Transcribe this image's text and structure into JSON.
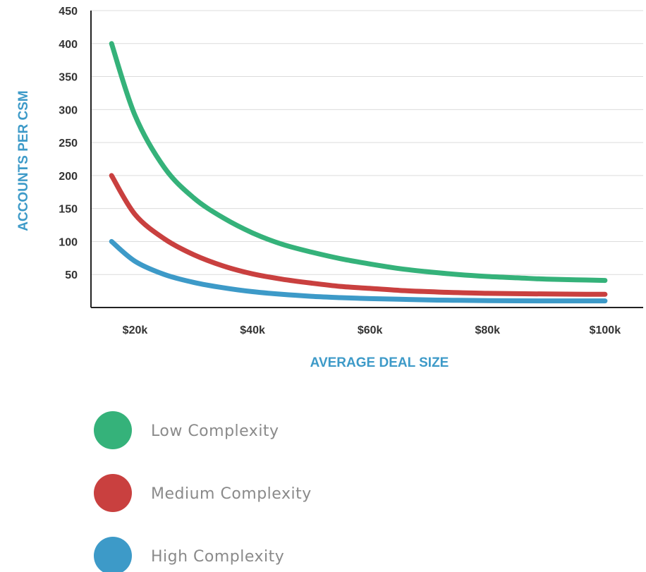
{
  "chart_data": {
    "type": "line",
    "xlabel": "AVERAGE DEAL SIZE",
    "ylabel": "ACCOUNTS PER CSM",
    "x_tick_labels": [
      "$20k",
      "$40k",
      "$60k",
      "$80k",
      "$100k"
    ],
    "x_ticks": [
      20,
      40,
      60,
      80,
      100
    ],
    "y_tick_labels": [
      "450",
      "400",
      "350",
      "300",
      "250",
      "200",
      "150",
      "100",
      "50"
    ],
    "y_ticks": [
      450,
      400,
      350,
      300,
      250,
      200,
      150,
      100,
      50
    ],
    "xlim": [
      12.5,
      106.5
    ],
    "ylim": [
      0,
      450
    ],
    "grid": true,
    "legend_position": "below",
    "x": [
      16,
      20,
      25,
      30,
      35,
      40,
      45,
      50,
      55,
      60,
      65,
      70,
      75,
      80,
      85,
      90,
      95,
      100
    ],
    "series": [
      {
        "name": "Low Complexity",
        "color": "#35b27a",
        "values": [
          400,
          291,
          212,
          166,
          136,
          113,
          96,
          84,
          74,
          66,
          59,
          54,
          50,
          47,
          45,
          43,
          42,
          41
        ]
      },
      {
        "name": "Medium Complexity",
        "color": "#c9403f",
        "values": [
          200,
          141,
          104,
          80,
          63,
          51,
          43,
          37,
          32,
          29,
          26,
          24,
          22.5,
          21.5,
          21,
          20.5,
          20.2,
          20
        ]
      },
      {
        "name": "High Complexity",
        "color": "#3d9ac8",
        "values": [
          100,
          70,
          50,
          38,
          30,
          24,
          20,
          17,
          15,
          13.5,
          12.5,
          11.5,
          11,
          10.5,
          10.2,
          10.1,
          10,
          10
        ]
      }
    ]
  }
}
